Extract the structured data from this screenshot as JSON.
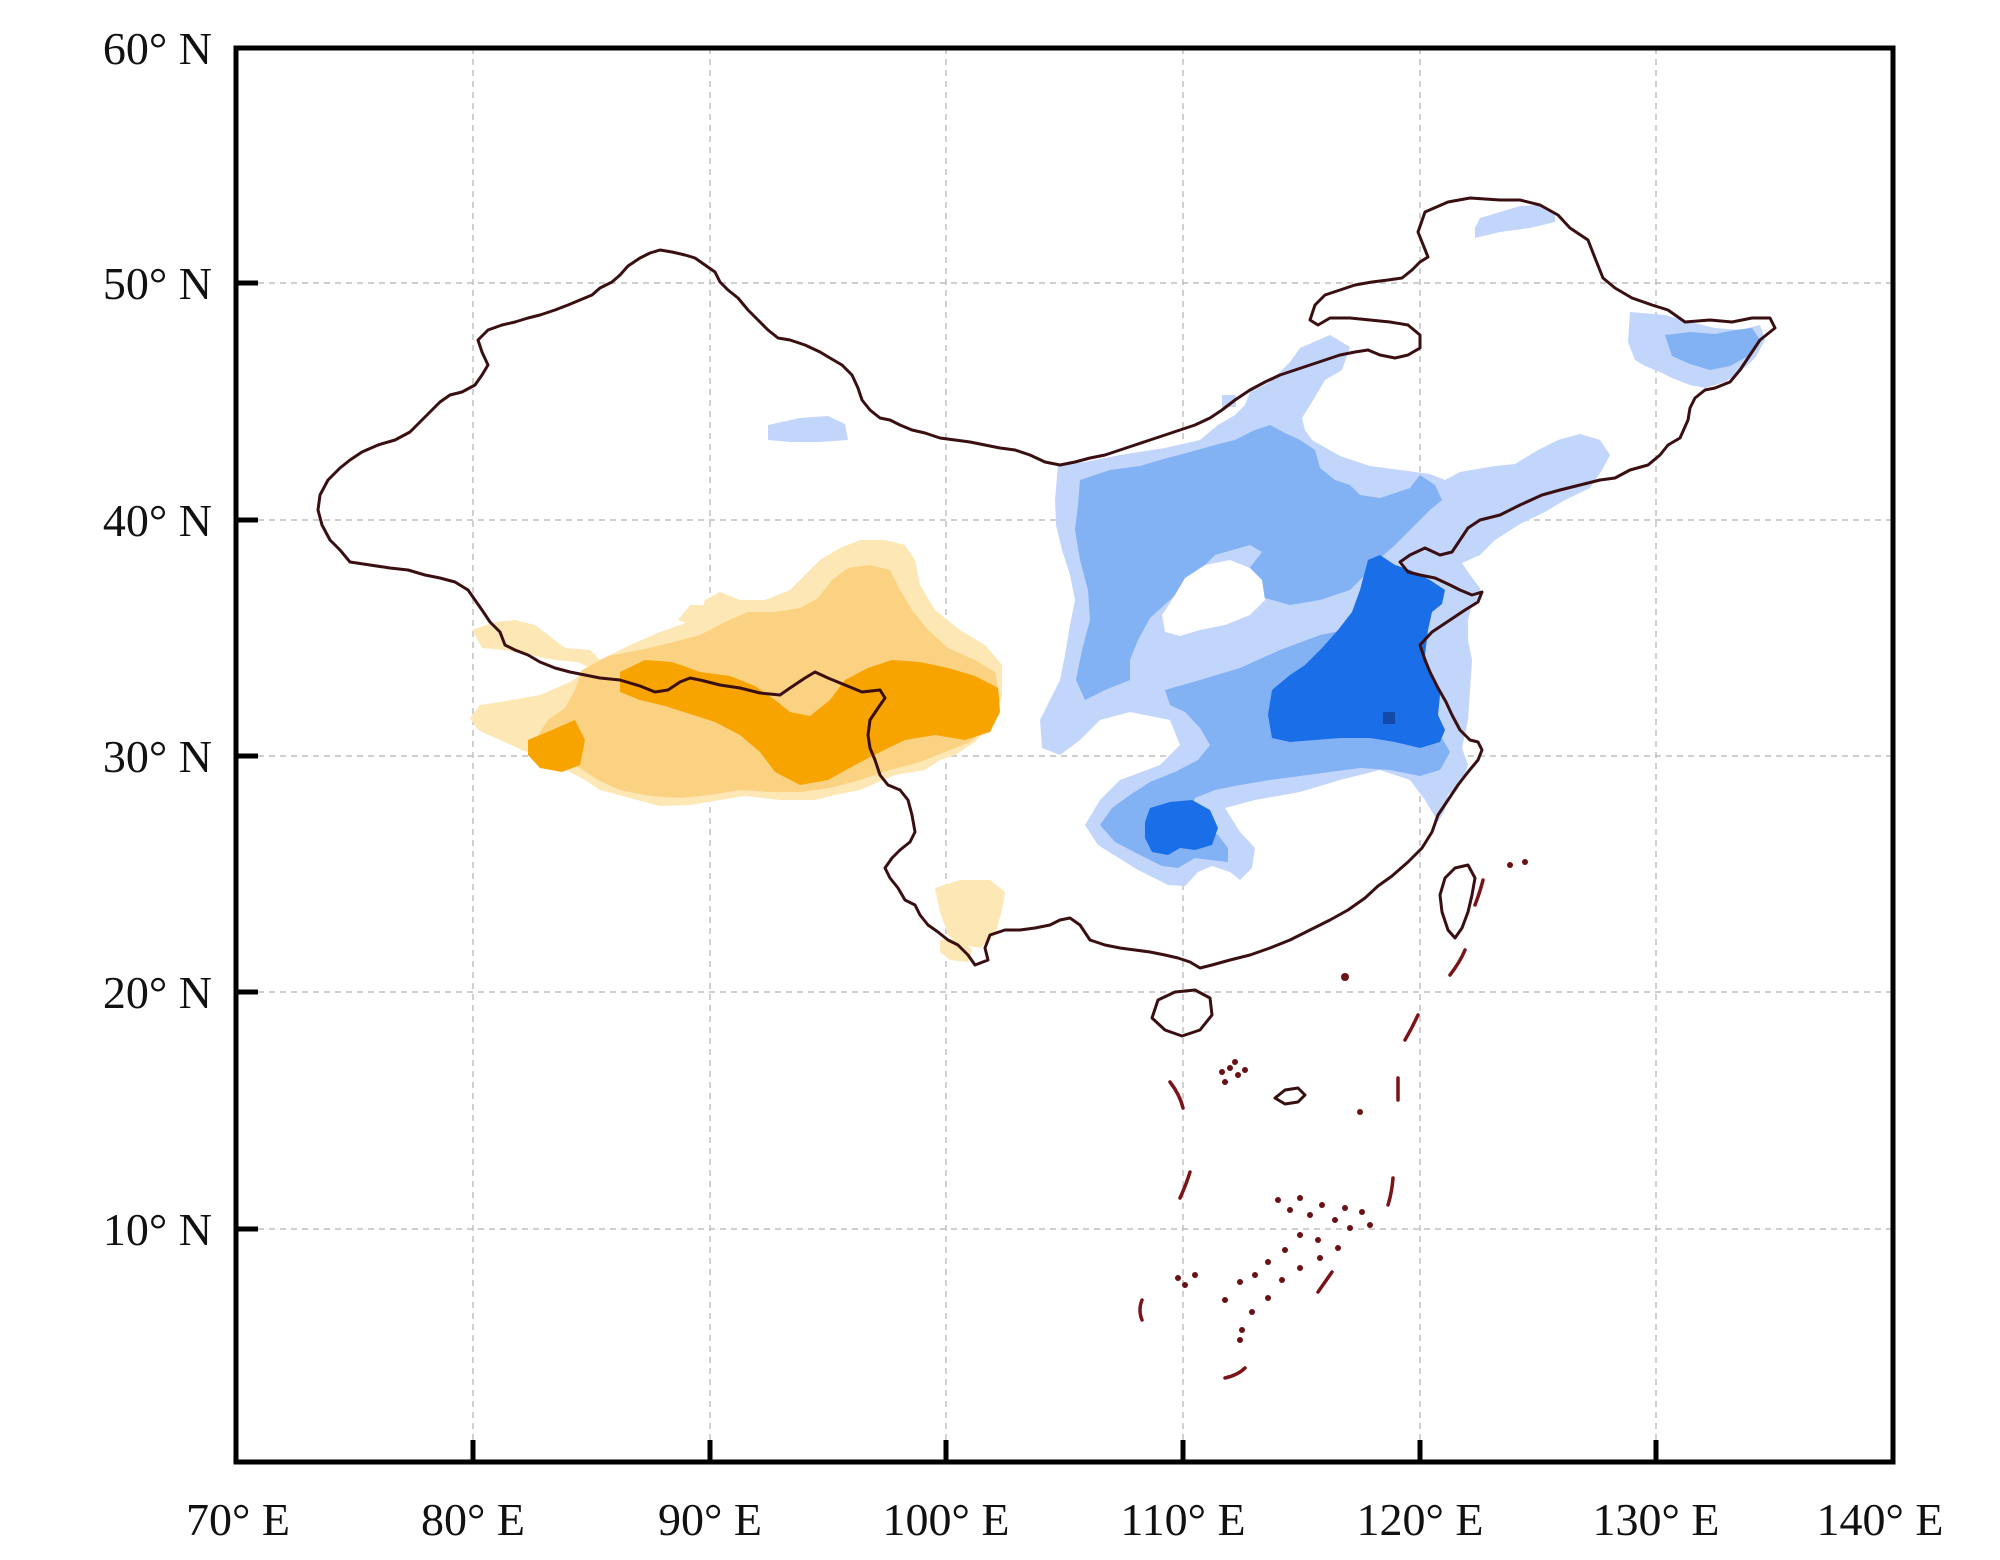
{
  "map": {
    "xaxis": {
      "min": 70,
      "max": 140,
      "ticks": [
        70,
        80,
        90,
        100,
        110,
        120,
        130,
        140
      ],
      "labels": [
        "70° E",
        "80° E",
        "90° E",
        "100° E",
        "110° E",
        "120° E",
        "130° E",
        "140° E"
      ]
    },
    "yaxis": {
      "min": 0,
      "max": 60,
      "ticks": [
        10,
        20,
        30,
        40,
        50,
        60
      ],
      "labels": [
        "10° N",
        "20° N",
        "30° N",
        "40° N",
        "50° N",
        "60° N"
      ]
    },
    "grid": true,
    "colors": {
      "orange_dark": "#f7a400",
      "orange_mid": "#fbd281",
      "orange_light": "#fde7b4",
      "blue_light": "#c2d5fb",
      "blue_mid": "#82b2f4",
      "blue_dark": "#1a6fe8",
      "blue_darkest": "#1349a8",
      "border": "#3a0f12"
    }
  }
}
